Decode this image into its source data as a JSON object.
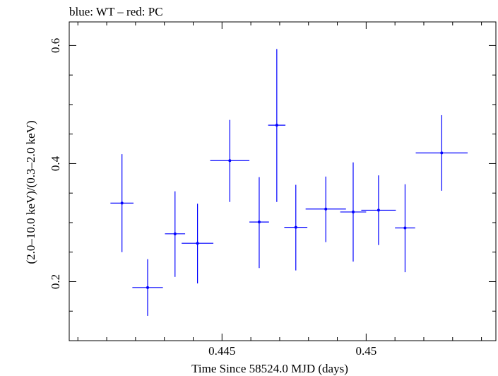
{
  "chart_data": {
    "type": "scatter",
    "title": "blue: WT – red: PC",
    "xlabel": "Time Since 58524.0 MJD (days)",
    "ylabel": "(2.0–10.0 keV)/(0.3–2.0 keV)",
    "xlim": [
      0.4397,
      0.4545
    ],
    "ylim": [
      0.1,
      0.64
    ],
    "x_ticks": [
      0.445,
      0.45
    ],
    "x_tick_labels": [
      "0.445",
      "0.45"
    ],
    "y_ticks": [
      0.2,
      0.4,
      0.6
    ],
    "y_tick_labels": [
      "0.2",
      "0.4",
      "0.6"
    ],
    "grid": false,
    "series": [
      {
        "color": "#0000ff",
        "points": [
          {
            "x": 0.44153,
            "y": 0.333,
            "xerr": 0.0004,
            "ylow": 0.25,
            "yhigh": 0.416
          },
          {
            "x": 0.44242,
            "y": 0.19,
            "xerr": 0.00053,
            "ylow": 0.142,
            "yhigh": 0.238
          },
          {
            "x": 0.44337,
            "y": 0.281,
            "xerr": 0.00035,
            "ylow": 0.208,
            "yhigh": 0.353
          },
          {
            "x": 0.44415,
            "y": 0.265,
            "xerr": 0.00055,
            "ylow": 0.197,
            "yhigh": 0.332
          },
          {
            "x": 0.44527,
            "y": 0.405,
            "xerr": 0.00068,
            "ylow": 0.335,
            "yhigh": 0.474
          },
          {
            "x": 0.44629,
            "y": 0.301,
            "xerr": 0.00034,
            "ylow": 0.223,
            "yhigh": 0.377
          },
          {
            "x": 0.4469,
            "y": 0.465,
            "xerr": 0.0003,
            "ylow": 0.335,
            "yhigh": 0.594
          },
          {
            "x": 0.44756,
            "y": 0.292,
            "xerr": 0.0004,
            "ylow": 0.219,
            "yhigh": 0.364
          },
          {
            "x": 0.4486,
            "y": 0.323,
            "xerr": 0.0007,
            "ylow": 0.267,
            "yhigh": 0.378
          },
          {
            "x": 0.44955,
            "y": 0.318,
            "xerr": 0.00045,
            "ylow": 0.234,
            "yhigh": 0.402
          },
          {
            "x": 0.45043,
            "y": 0.321,
            "xerr": 0.0006,
            "ylow": 0.262,
            "yhigh": 0.38
          },
          {
            "x": 0.45135,
            "y": 0.291,
            "xerr": 0.00035,
            "ylow": 0.216,
            "yhigh": 0.365
          },
          {
            "x": 0.45262,
            "y": 0.418,
            "xerr": 0.0009,
            "ylow": 0.354,
            "yhigh": 0.482
          }
        ]
      }
    ]
  }
}
